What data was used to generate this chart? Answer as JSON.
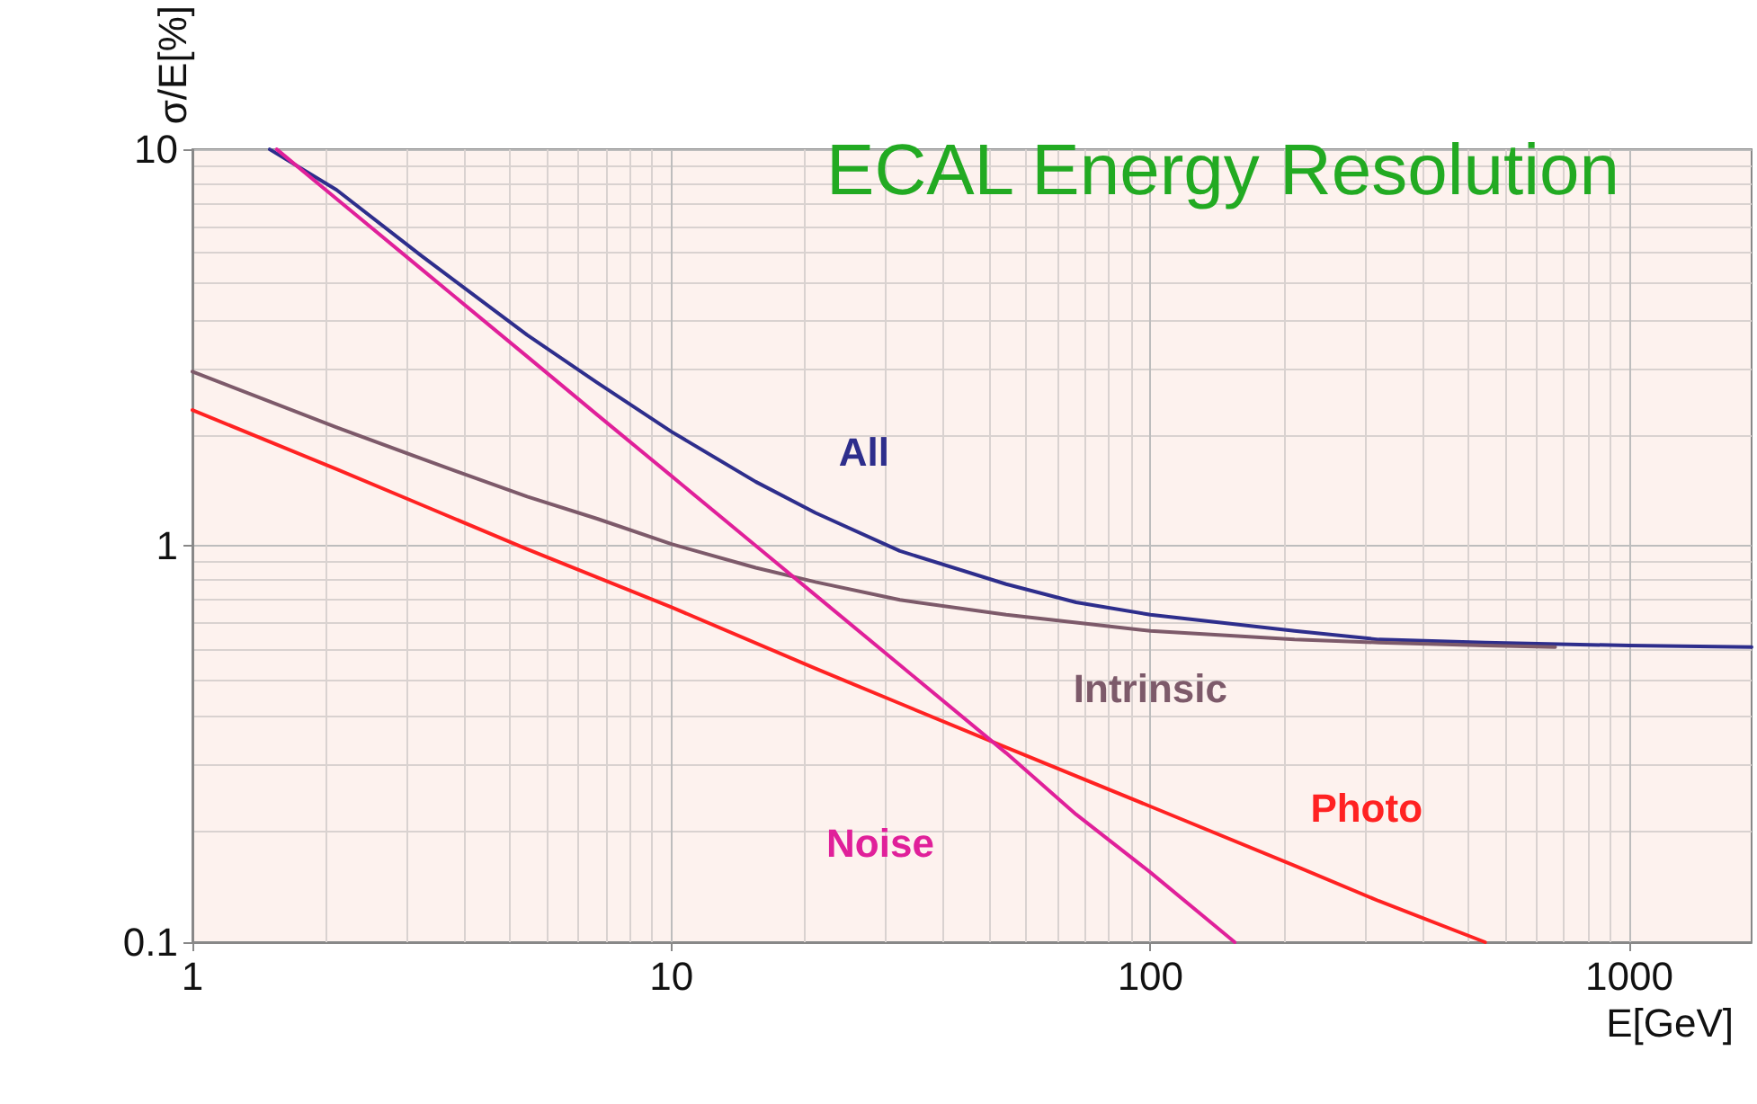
{
  "chart_data": {
    "type": "line",
    "title": "ECAL Energy Resolution",
    "xlabel": "E[GeV]",
    "ylabel": "σ/E[%]",
    "log": "xy",
    "xlim": [
      1,
      1800
    ],
    "ylim": [
      0.1,
      10
    ],
    "xticks": [
      1,
      10,
      100,
      1000
    ],
    "yticks": [
      0.1,
      1,
      10
    ],
    "grid": true,
    "legend": false,
    "marker": "none",
    "line_style": "solid",
    "series": [
      {
        "name": "All",
        "color": "#2e2e8c",
        "x": [
          1.45,
          2,
          3,
          5,
          7,
          10,
          15,
          20,
          30,
          50,
          70,
          100,
          200,
          300,
          500,
          1000,
          1800
        ],
        "values": [
          10,
          7.9,
          5.4,
          3.4,
          2.58,
          1.94,
          1.45,
          1.21,
          0.97,
          0.8,
          0.72,
          0.67,
          0.61,
          0.58,
          0.57,
          0.56,
          0.555
        ]
      },
      {
        "name": "Intrinsic",
        "color": "#7d5a6a",
        "x": [
          1,
          2,
          3,
          5,
          7,
          10,
          15,
          20,
          30,
          50,
          70,
          100,
          200,
          300,
          500,
          700
        ],
        "values": [
          2.75,
          1.99,
          1.66,
          1.33,
          1.17,
          1.01,
          0.88,
          0.81,
          0.73,
          0.67,
          0.64,
          0.61,
          0.58,
          0.57,
          0.56,
          0.555
        ]
      },
      {
        "name": "Photo",
        "color": "#ff2222",
        "x": [
          1,
          2,
          3,
          5,
          10,
          20,
          30,
          50,
          100,
          200,
          300,
          500
        ],
        "values": [
          2.2,
          1.56,
          1.27,
          0.98,
          0.7,
          0.49,
          0.4,
          0.31,
          0.22,
          0.156,
          0.127,
          0.1
        ]
      },
      {
        "name": "Noise",
        "color": "#e0209a",
        "x": [
          1.5,
          2,
          3,
          5,
          7,
          10,
          15,
          20,
          30,
          50,
          70,
          100,
          150
        ],
        "values": [
          10,
          7.5,
          5,
          3,
          2.14,
          1.5,
          1,
          0.75,
          0.5,
          0.3,
          0.21,
          0.15,
          0.1
        ]
      }
    ]
  }
}
